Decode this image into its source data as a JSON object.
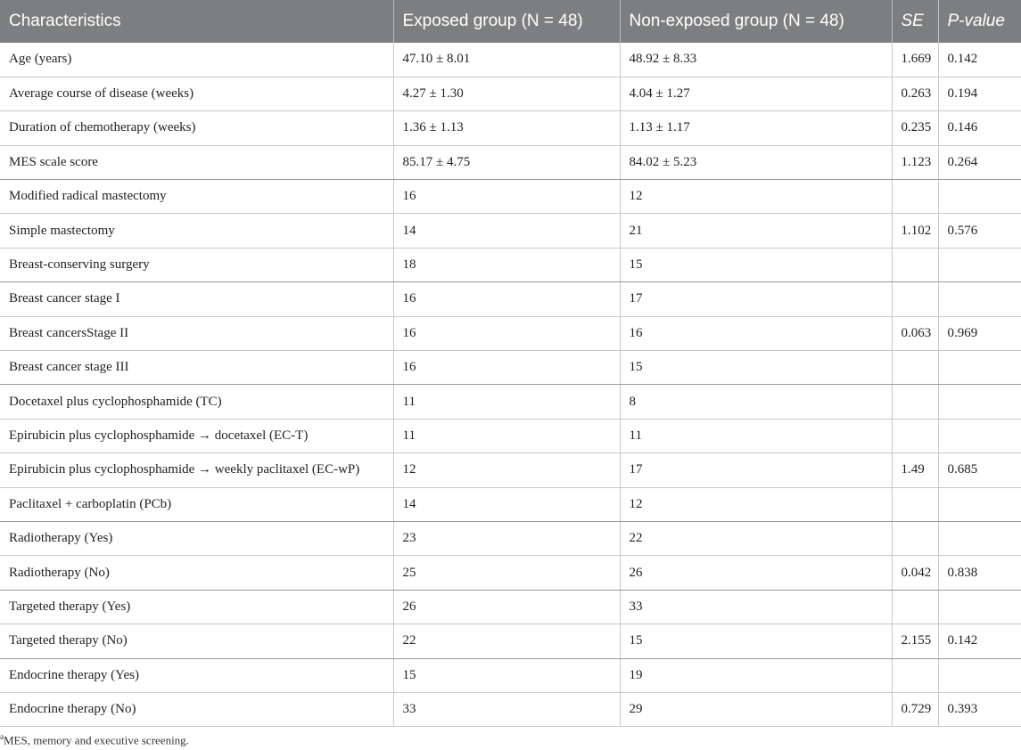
{
  "table": {
    "headers": [
      {
        "label": "Characteristics",
        "italic": false
      },
      {
        "label": "Exposed group (N = 48)",
        "italic": false
      },
      {
        "label": "Non-exposed group (N = 48)",
        "italic": false
      },
      {
        "label": "SE",
        "italic": true
      },
      {
        "label": "P-value",
        "italic": true
      }
    ],
    "rows": [
      [
        "Age (years)",
        "47.10 ± 8.01",
        "48.92 ± 8.33",
        "1.669",
        "0.142"
      ],
      [
        "Average course of disease (weeks)",
        "4.27 ± 1.30",
        "4.04 ± 1.27",
        "0.263",
        "0.194"
      ],
      [
        "Duration of chemotherapy (weeks)",
        "1.36 ± 1.13",
        "1.13 ± 1.17",
        "0.235",
        "0.146"
      ],
      [
        "MES scale score",
        "85.17 ± 4.75",
        "84.02 ± 5.23",
        "1.123",
        "0.264"
      ],
      [
        "Modified radical mastectomy",
        "16",
        "12",
        "",
        ""
      ],
      [
        "Simple mastectomy",
        "14",
        "21",
        "1.102",
        "0.576"
      ],
      [
        "Breast-conserving surgery",
        "18",
        "15",
        "",
        ""
      ],
      [
        "Breast cancer stage I",
        "16",
        "17",
        "",
        ""
      ],
      [
        "Breast cancersStage II",
        "16",
        "16",
        "0.063",
        "0.969"
      ],
      [
        "Breast cancer stage III",
        "16",
        "15",
        "",
        ""
      ],
      [
        "Docetaxel plus cyclophosphamide (TC)",
        "11",
        "8",
        "",
        ""
      ],
      [
        "Epirubicin plus cyclophosphamide → docetaxel (EC-T)",
        "11",
        "11",
        "",
        ""
      ],
      [
        "Epirubicin plus cyclophosphamide → weekly paclitaxel (EC-wP)",
        "12",
        "17",
        "1.49",
        "0.685"
      ],
      [
        "Paclitaxel + carboplatin (PCb)",
        "14",
        "12",
        "",
        ""
      ],
      [
        "Radiotherapy (Yes)",
        "23",
        "22",
        "",
        ""
      ],
      [
        "Radiotherapy (No)",
        "25",
        "26",
        "0.042",
        "0.838"
      ],
      [
        "Targeted therapy (Yes)",
        "26",
        "33",
        "",
        ""
      ],
      [
        "Targeted therapy (No)",
        "22",
        "15",
        "2.155",
        "0.142"
      ],
      [
        "Endocrine therapy (Yes)",
        "15",
        "19",
        "",
        ""
      ],
      [
        "Endocrine therapy (No)",
        "33",
        "29",
        "0.729",
        "0.393"
      ]
    ]
  },
  "footnote": {
    "marker": "a",
    "text": "MES, memory and executive screening."
  },
  "colors": {
    "header_bg": "#7d7e7f",
    "header_text": "#ffffff",
    "body_text": "#222222",
    "grid": "#c8c8c8"
  }
}
